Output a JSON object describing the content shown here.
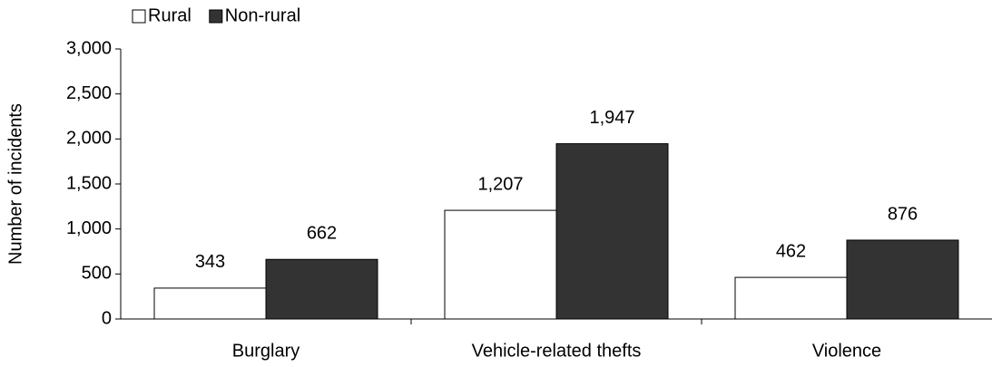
{
  "chart_data": {
    "type": "bar",
    "y_label": "Number of incidents",
    "categories": [
      "Burglary",
      "Vehicle-related thefts",
      "Violence"
    ],
    "series": [
      {
        "name": "Rural",
        "color": "#ffffff",
        "values": [
          343,
          1207,
          462
        ],
        "value_labels": [
          "343",
          "1,207",
          "462"
        ]
      },
      {
        "name": "Non-rural",
        "color": "#333333",
        "values": [
          662,
          1947,
          876
        ],
        "value_labels": [
          "662",
          "1,947",
          "876"
        ]
      }
    ],
    "ylim": [
      0,
      3000
    ],
    "yticks": [
      0,
      {
        "value": 500,
        "label": "500"
      },
      {
        "value": 1000,
        "label": "1,000"
      },
      {
        "value": 1500,
        "label": "1,500"
      },
      {
        "value": 2000,
        "label": "2,000"
      },
      {
        "value": 2500,
        "label": "2,500"
      },
      {
        "value": 3000,
        "label": "3,000"
      }
    ],
    "grid": false,
    "legend": "top-left"
  }
}
